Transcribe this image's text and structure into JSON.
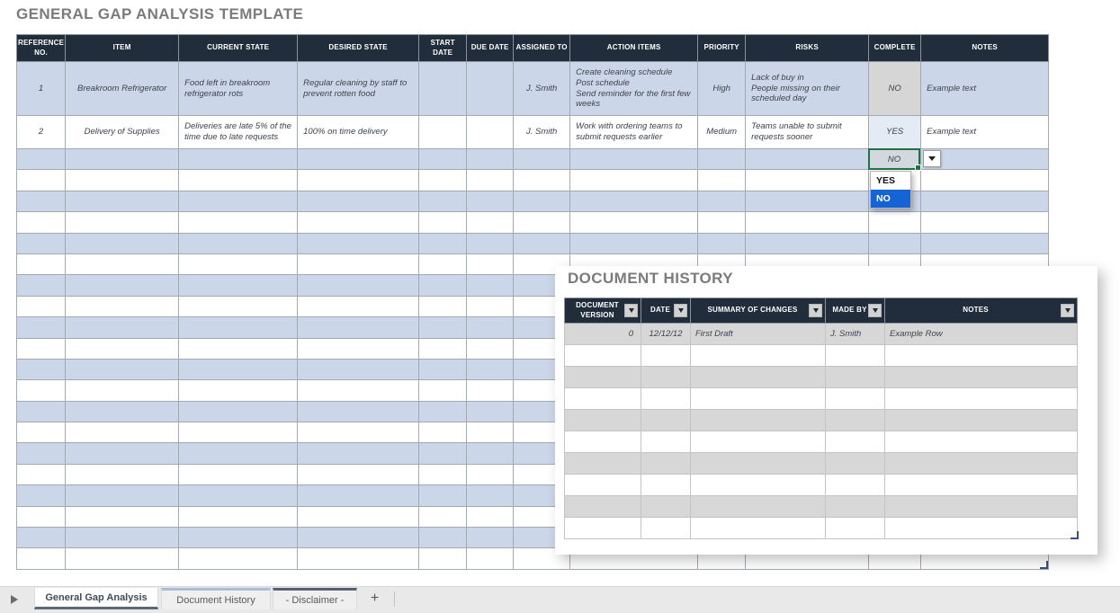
{
  "title": "GENERAL GAP ANALYSIS TEMPLATE",
  "colors": {
    "header_bg": "#212d3b",
    "row_blue": "#ccd6e9",
    "row_white": "#ffffff",
    "gray_cell": "#d6d6d6",
    "yes_cell": "#e4ebf4",
    "doc_row_gray": "#d7d7d7",
    "select_green": "#217346",
    "dropdown_blue": "#1464d6",
    "title_gray": "#7b7b7b"
  },
  "main_table": {
    "columns": [
      "REFERENCE NO.",
      "ITEM",
      "CURRENT STATE",
      "DESIRED STATE",
      "START DATE",
      "DUE DATE",
      "ASSIGNED TO",
      "ACTION ITEMS",
      "PRIORITY",
      "RISKS",
      "COMPLETE",
      "NOTES"
    ],
    "rows": [
      {
        "height": 60,
        "cells": [
          "1",
          "Breakroom Refrigerator",
          "Food left in breakroom refrigerator rots",
          "Regular cleaning by staff to prevent rotten food",
          "",
          "",
          "J. Smith",
          "Create cleaning schedule\nPost schedule\nSend reminder for the first few weeks",
          "High",
          "Lack of buy in\nPeople missing on their scheduled day",
          "NO",
          "Example text"
        ]
      },
      {
        "height": 37,
        "cells": [
          "2",
          "Delivery of Supplies",
          "Deliveries are late 5% of the time due to late requests",
          "100% on time delivery",
          "",
          "",
          "J. Smith",
          "Work with ordering teams to submit requests earlier",
          "Medium",
          "Teams unable to submit requests sooner",
          "YES",
          "Example text"
        ]
      }
    ],
    "empty_row_count": 20
  },
  "dropdown": {
    "selected": "NO",
    "options": [
      "YES",
      "NO"
    ],
    "highlighted": "NO"
  },
  "document_history": {
    "title": "DOCUMENT HISTORY",
    "columns": [
      "DOCUMENT VERSION",
      "DATE",
      "SUMMARY OF CHANGES",
      "MADE BY",
      "NOTES"
    ],
    "rows": [
      [
        "0",
        "12/12/12",
        "First Draft",
        "J. Smith",
        "Example Row"
      ]
    ],
    "empty_row_count": 9
  },
  "sheet_tabs": {
    "tabs": [
      {
        "label": "General Gap Analysis",
        "active": true
      },
      {
        "label": "Document History",
        "active": false
      },
      {
        "label": "- Disclaimer -",
        "active": false
      }
    ],
    "add_label": "+"
  }
}
